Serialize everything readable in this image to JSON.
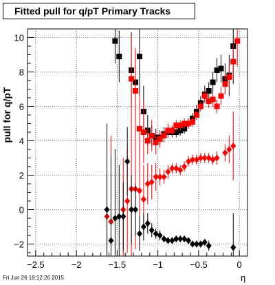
{
  "chart_data": {
    "type": "scatter",
    "title": "Fitted pull for q/pT  Primary Tracks",
    "xlabel": "η",
    "ylabel": "pull for q/pT",
    "xlim": [
      -2.6,
      0.1
    ],
    "ylim": [
      -2.7,
      10.5
    ],
    "x_ticks": [
      -2.5,
      -2,
      -1.5,
      -1,
      -0.5,
      0
    ],
    "y_ticks": [
      -2,
      0,
      2,
      4,
      6,
      8,
      10
    ],
    "grid": true,
    "footer": "Fri Jun 26 19:12:26 2015",
    "series": [
      {
        "marker": "square",
        "color": "#000000",
        "points": [
          [
            -1.525,
            9.8
          ],
          [
            -1.475,
            8.9
          ],
          [
            -1.325,
            8.1
          ],
          [
            -1.275,
            7.4
          ],
          [
            -1.225,
            8.9
          ],
          [
            -1.175,
            5.7
          ],
          [
            -1.125,
            4.6
          ],
          [
            -1.075,
            4.3
          ],
          [
            -1.025,
            4.2
          ],
          [
            -0.975,
            4.2
          ],
          [
            -0.925,
            4.4
          ],
          [
            -0.875,
            4.5
          ],
          [
            -0.825,
            4.5
          ],
          [
            -0.775,
            4.5
          ],
          [
            -0.725,
            4.6
          ],
          [
            -0.675,
            4.7
          ],
          [
            -0.625,
            5.0
          ],
          [
            -0.575,
            5.3
          ],
          [
            -0.525,
            5.7
          ],
          [
            -0.475,
            6.2
          ],
          [
            -0.425,
            6.7
          ],
          [
            -0.375,
            6.9
          ],
          [
            -0.325,
            7.4
          ],
          [
            -0.275,
            8.1
          ],
          [
            -0.225,
            8.2
          ],
          [
            -0.175,
            7.6
          ],
          [
            -0.125,
            7.8
          ],
          [
            -0.075,
            9.5
          ]
        ],
        "errors": [
          1.3,
          1.5,
          2.2,
          1.8,
          2.2,
          1.5,
          0.9,
          0.6,
          0.5,
          0.4,
          0.4,
          0.3,
          0.3,
          0.3,
          0.3,
          0.3,
          0.3,
          0.3,
          0.4,
          0.4,
          0.5,
          0.5,
          0.6,
          0.7,
          0.8,
          0.9,
          1.2,
          2.2
        ]
      },
      {
        "marker": "square",
        "color": "#ff0000",
        "points": [
          [
            -1.325,
            7.6
          ],
          [
            -1.275,
            6.9
          ],
          [
            -1.225,
            4.7
          ],
          [
            -1.175,
            4.5
          ],
          [
            -1.125,
            4.0
          ],
          [
            -1.075,
            4.3
          ],
          [
            -1.025,
            3.9
          ],
          [
            -0.975,
            4.1
          ],
          [
            -0.925,
            4.3
          ],
          [
            -0.875,
            4.6
          ],
          [
            -0.825,
            4.6
          ],
          [
            -0.775,
            4.9
          ],
          [
            -0.725,
            4.9
          ],
          [
            -0.675,
            5.0
          ],
          [
            -0.625,
            5.0
          ],
          [
            -0.575,
            5.1
          ],
          [
            -0.525,
            5.5
          ],
          [
            -0.475,
            6.0
          ],
          [
            -0.425,
            6.6
          ],
          [
            -0.375,
            6.3
          ],
          [
            -0.325,
            6.4
          ],
          [
            -0.275,
            6.0
          ],
          [
            -0.225,
            6.6
          ],
          [
            -0.175,
            7.3
          ],
          [
            -0.125,
            7.7
          ],
          [
            -0.075,
            8.6
          ],
          [
            -0.025,
            9.8
          ]
        ],
        "errors": [
          2.5,
          2.5,
          2.0,
          1.8,
          0.8,
          0.9,
          0.7,
          0.5,
          0.4,
          0.4,
          0.3,
          0.3,
          0.3,
          0.3,
          0.3,
          0.3,
          0.3,
          0.3,
          0.4,
          0.4,
          0.4,
          0.4,
          0.5,
          0.6,
          0.8,
          1.0,
          1.5
        ]
      },
      {
        "marker": "diamond",
        "color": "#ff0000",
        "points": [
          [
            -1.625,
            -0.4
          ],
          [
            -1.575,
            -0.7
          ],
          [
            -1.425,
            0.0
          ],
          [
            -1.375,
            0.5
          ],
          [
            -1.325,
            1.2
          ],
          [
            -1.275,
            1.2
          ],
          [
            -1.225,
            1.1
          ],
          [
            -1.175,
            0.6
          ],
          [
            -1.125,
            1.5
          ],
          [
            -1.075,
            1.6
          ],
          [
            -1.025,
            1.9
          ],
          [
            -0.975,
            1.9
          ],
          [
            -0.925,
            1.9
          ],
          [
            -0.875,
            2.2
          ],
          [
            -0.825,
            2.4
          ],
          [
            -0.775,
            2.4
          ],
          [
            -0.725,
            2.3
          ],
          [
            -0.675,
            2.5
          ],
          [
            -0.625,
            2.8
          ],
          [
            -0.575,
            2.9
          ],
          [
            -0.525,
            2.9
          ],
          [
            -0.475,
            3.0
          ],
          [
            -0.425,
            3.0
          ],
          [
            -0.375,
            3.0
          ],
          [
            -0.325,
            2.9
          ],
          [
            -0.275,
            3.0
          ],
          [
            -0.175,
            3.3
          ],
          [
            -0.125,
            3.5
          ],
          [
            -0.075,
            3.7
          ]
        ],
        "errors": [
          2.5,
          5.0,
          3.0,
          3.0,
          4.0,
          3.5,
          3.5,
          2.0,
          1.2,
          1.0,
          0.8,
          0.5,
          0.4,
          0.4,
          0.3,
          0.3,
          0.3,
          0.3,
          0.3,
          0.3,
          0.3,
          0.3,
          0.3,
          0.3,
          0.3,
          0.4,
          0.5,
          0.8,
          2.0
        ]
      },
      {
        "marker": "diamond",
        "color": "#000000",
        "points": [
          [
            -1.625,
            0.0
          ],
          [
            -1.575,
            -1.8
          ],
          [
            -1.525,
            -0.5
          ],
          [
            -1.475,
            -0.4
          ],
          [
            -1.425,
            -0.4
          ],
          [
            -1.375,
            2.8
          ],
          [
            -1.325,
            0.0
          ],
          [
            -1.275,
            0.0
          ],
          [
            -1.225,
            -1.4
          ],
          [
            -1.175,
            -1.0
          ],
          [
            -1.125,
            -0.8
          ],
          [
            -1.075,
            -1.2
          ],
          [
            -1.025,
            -1.4
          ],
          [
            -0.975,
            -1.5
          ],
          [
            -0.925,
            -1.7
          ],
          [
            -0.875,
            -1.8
          ],
          [
            -0.825,
            -1.8
          ],
          [
            -0.775,
            -1.7
          ],
          [
            -0.725,
            -1.7
          ],
          [
            -0.675,
            -1.7
          ],
          [
            -0.625,
            -1.8
          ],
          [
            -0.575,
            -2.0
          ],
          [
            -0.525,
            -2.0
          ],
          [
            -0.475,
            -2.0
          ],
          [
            -0.425,
            -1.9
          ],
          [
            -0.375,
            -2.1
          ],
          [
            -0.075,
            -2.2
          ]
        ],
        "errors": [
          5.0,
          5.0,
          4.0,
          3.0,
          2.0,
          2.0,
          2.0,
          1.5,
          1.0,
          0.8,
          0.6,
          0.4,
          0.3,
          0.3,
          0.2,
          0.2,
          0.2,
          0.2,
          0.2,
          0.2,
          0.2,
          0.2,
          0.2,
          0.2,
          0.2,
          0.3,
          2.0
        ]
      }
    ]
  }
}
